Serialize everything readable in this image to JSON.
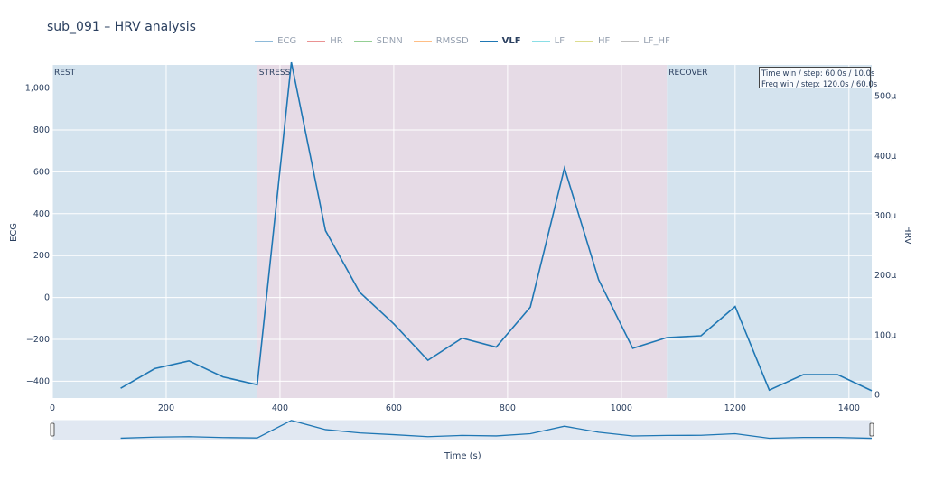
{
  "title": "sub_091 – HRV analysis",
  "legend": [
    {
      "name": "ECG",
      "color": "#1f77b4",
      "visible": false
    },
    {
      "name": "HR",
      "color": "#d62728",
      "visible": false
    },
    {
      "name": "SDNN",
      "color": "#2ca02c",
      "visible": false
    },
    {
      "name": "RMSSD",
      "color": "#ff7f0e",
      "visible": false
    },
    {
      "name": "VLF",
      "color": "#1f77b4",
      "visible": true
    },
    {
      "name": "LF",
      "color": "#17becf",
      "visible": false
    },
    {
      "name": "HF",
      "color": "#bcbd22",
      "visible": false
    },
    {
      "name": "LF_HF",
      "color": "#7f7f7f",
      "visible": false
    }
  ],
  "info": {
    "line1": "Time win / step: 60.0s / 10.0s",
    "line2": "Freq win / step: 120.0s / 60.0s"
  },
  "chart_data": {
    "type": "line",
    "title": "sub_091 – HRV analysis",
    "xlabel": "Time (s)",
    "ylabel_left": "ECG",
    "ylabel_right": "HRV",
    "xlim": [
      0,
      1440
    ],
    "ylim_left": [
      -480,
      1110
    ],
    "ylim_right": [
      -5.3e-06,
      0.0005525
    ],
    "x_ticks": [
      0,
      200,
      400,
      600,
      800,
      1000,
      1200,
      1400
    ],
    "y_left_ticks": [
      -400,
      -200,
      0,
      200,
      400,
      600,
      800,
      1000
    ],
    "y_right_ticks": [
      0,
      0.0001,
      0.0002,
      0.0003,
      0.0004,
      0.0005
    ],
    "y_right_tick_labels": [
      "0",
      "100μ",
      "200μ",
      "300μ",
      "400μ",
      "500μ"
    ],
    "grid": true,
    "legend_position": "top-center",
    "phases": [
      {
        "label": "REST",
        "start": 0,
        "end": 360,
        "color": "#d4e3ee"
      },
      {
        "label": "STRESS",
        "start": 360,
        "end": 1080,
        "color": "#e6dbe6"
      },
      {
        "label": "RECOVER",
        "start": 1080,
        "end": 1440,
        "color": "#d4e3ee"
      }
    ],
    "series": [
      {
        "name": "VLF",
        "color": "#1f77b4",
        "axis": "right",
        "x": [
          120,
          180,
          240,
          300,
          360,
          420,
          480,
          540,
          600,
          660,
          720,
          780,
          840,
          900,
          960,
          1020,
          1080,
          1140,
          1200,
          1260,
          1320,
          1380,
          1440
        ],
        "values": [
          1.1e-05,
          4.4e-05,
          5.7e-05,
          3e-05,
          1.7e-05,
          0.000557,
          0.000275,
          0.000172,
          0.000119,
          5.8e-05,
          9.5e-05,
          8e-05,
          0.000147,
          0.00038,
          0.000193,
          7.8e-05,
          9.6e-05,
          9.9e-05,
          0.000148,
          8e-06,
          3.4e-05,
          3.4e-05,
          7e-06
        ]
      }
    ]
  }
}
